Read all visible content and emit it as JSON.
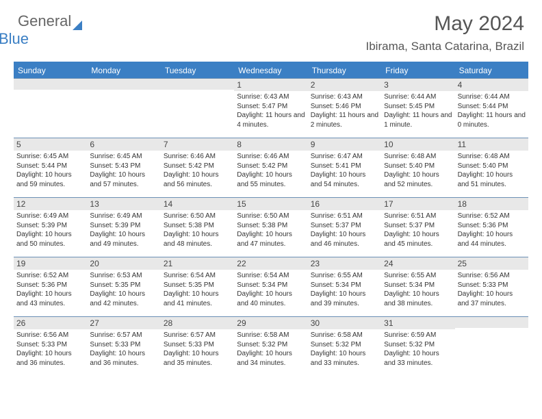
{
  "brand": {
    "part1": "General",
    "part2": "Blue"
  },
  "title": "May 2024",
  "location": "Ibirama, Santa Catarina, Brazil",
  "colors": {
    "header_bg": "#3b7fc4",
    "header_text": "#ffffff",
    "daynum_bg": "#e8e8e8",
    "text": "#333333",
    "border": "#6a8fb5"
  },
  "day_names": [
    "Sunday",
    "Monday",
    "Tuesday",
    "Wednesday",
    "Thursday",
    "Friday",
    "Saturday"
  ],
  "weeks": [
    [
      {
        "n": "",
        "sr": "",
        "ss": "",
        "dl": ""
      },
      {
        "n": "",
        "sr": "",
        "ss": "",
        "dl": ""
      },
      {
        "n": "",
        "sr": "",
        "ss": "",
        "dl": ""
      },
      {
        "n": "1",
        "sr": "Sunrise: 6:43 AM",
        "ss": "Sunset: 5:47 PM",
        "dl": "Daylight: 11 hours and 4 minutes."
      },
      {
        "n": "2",
        "sr": "Sunrise: 6:43 AM",
        "ss": "Sunset: 5:46 PM",
        "dl": "Daylight: 11 hours and 2 minutes."
      },
      {
        "n": "3",
        "sr": "Sunrise: 6:44 AM",
        "ss": "Sunset: 5:45 PM",
        "dl": "Daylight: 11 hours and 1 minute."
      },
      {
        "n": "4",
        "sr": "Sunrise: 6:44 AM",
        "ss": "Sunset: 5:44 PM",
        "dl": "Daylight: 11 hours and 0 minutes."
      }
    ],
    [
      {
        "n": "5",
        "sr": "Sunrise: 6:45 AM",
        "ss": "Sunset: 5:44 PM",
        "dl": "Daylight: 10 hours and 59 minutes."
      },
      {
        "n": "6",
        "sr": "Sunrise: 6:45 AM",
        "ss": "Sunset: 5:43 PM",
        "dl": "Daylight: 10 hours and 57 minutes."
      },
      {
        "n": "7",
        "sr": "Sunrise: 6:46 AM",
        "ss": "Sunset: 5:42 PM",
        "dl": "Daylight: 10 hours and 56 minutes."
      },
      {
        "n": "8",
        "sr": "Sunrise: 6:46 AM",
        "ss": "Sunset: 5:42 PM",
        "dl": "Daylight: 10 hours and 55 minutes."
      },
      {
        "n": "9",
        "sr": "Sunrise: 6:47 AM",
        "ss": "Sunset: 5:41 PM",
        "dl": "Daylight: 10 hours and 54 minutes."
      },
      {
        "n": "10",
        "sr": "Sunrise: 6:48 AM",
        "ss": "Sunset: 5:40 PM",
        "dl": "Daylight: 10 hours and 52 minutes."
      },
      {
        "n": "11",
        "sr": "Sunrise: 6:48 AM",
        "ss": "Sunset: 5:40 PM",
        "dl": "Daylight: 10 hours and 51 minutes."
      }
    ],
    [
      {
        "n": "12",
        "sr": "Sunrise: 6:49 AM",
        "ss": "Sunset: 5:39 PM",
        "dl": "Daylight: 10 hours and 50 minutes."
      },
      {
        "n": "13",
        "sr": "Sunrise: 6:49 AM",
        "ss": "Sunset: 5:39 PM",
        "dl": "Daylight: 10 hours and 49 minutes."
      },
      {
        "n": "14",
        "sr": "Sunrise: 6:50 AM",
        "ss": "Sunset: 5:38 PM",
        "dl": "Daylight: 10 hours and 48 minutes."
      },
      {
        "n": "15",
        "sr": "Sunrise: 6:50 AM",
        "ss": "Sunset: 5:38 PM",
        "dl": "Daylight: 10 hours and 47 minutes."
      },
      {
        "n": "16",
        "sr": "Sunrise: 6:51 AM",
        "ss": "Sunset: 5:37 PM",
        "dl": "Daylight: 10 hours and 46 minutes."
      },
      {
        "n": "17",
        "sr": "Sunrise: 6:51 AM",
        "ss": "Sunset: 5:37 PM",
        "dl": "Daylight: 10 hours and 45 minutes."
      },
      {
        "n": "18",
        "sr": "Sunrise: 6:52 AM",
        "ss": "Sunset: 5:36 PM",
        "dl": "Daylight: 10 hours and 44 minutes."
      }
    ],
    [
      {
        "n": "19",
        "sr": "Sunrise: 6:52 AM",
        "ss": "Sunset: 5:36 PM",
        "dl": "Daylight: 10 hours and 43 minutes."
      },
      {
        "n": "20",
        "sr": "Sunrise: 6:53 AM",
        "ss": "Sunset: 5:35 PM",
        "dl": "Daylight: 10 hours and 42 minutes."
      },
      {
        "n": "21",
        "sr": "Sunrise: 6:54 AM",
        "ss": "Sunset: 5:35 PM",
        "dl": "Daylight: 10 hours and 41 minutes."
      },
      {
        "n": "22",
        "sr": "Sunrise: 6:54 AM",
        "ss": "Sunset: 5:34 PM",
        "dl": "Daylight: 10 hours and 40 minutes."
      },
      {
        "n": "23",
        "sr": "Sunrise: 6:55 AM",
        "ss": "Sunset: 5:34 PM",
        "dl": "Daylight: 10 hours and 39 minutes."
      },
      {
        "n": "24",
        "sr": "Sunrise: 6:55 AM",
        "ss": "Sunset: 5:34 PM",
        "dl": "Daylight: 10 hours and 38 minutes."
      },
      {
        "n": "25",
        "sr": "Sunrise: 6:56 AM",
        "ss": "Sunset: 5:33 PM",
        "dl": "Daylight: 10 hours and 37 minutes."
      }
    ],
    [
      {
        "n": "26",
        "sr": "Sunrise: 6:56 AM",
        "ss": "Sunset: 5:33 PM",
        "dl": "Daylight: 10 hours and 36 minutes."
      },
      {
        "n": "27",
        "sr": "Sunrise: 6:57 AM",
        "ss": "Sunset: 5:33 PM",
        "dl": "Daylight: 10 hours and 36 minutes."
      },
      {
        "n": "28",
        "sr": "Sunrise: 6:57 AM",
        "ss": "Sunset: 5:33 PM",
        "dl": "Daylight: 10 hours and 35 minutes."
      },
      {
        "n": "29",
        "sr": "Sunrise: 6:58 AM",
        "ss": "Sunset: 5:32 PM",
        "dl": "Daylight: 10 hours and 34 minutes."
      },
      {
        "n": "30",
        "sr": "Sunrise: 6:58 AM",
        "ss": "Sunset: 5:32 PM",
        "dl": "Daylight: 10 hours and 33 minutes."
      },
      {
        "n": "31",
        "sr": "Sunrise: 6:59 AM",
        "ss": "Sunset: 5:32 PM",
        "dl": "Daylight: 10 hours and 33 minutes."
      },
      {
        "n": "",
        "sr": "",
        "ss": "",
        "dl": ""
      }
    ]
  ]
}
